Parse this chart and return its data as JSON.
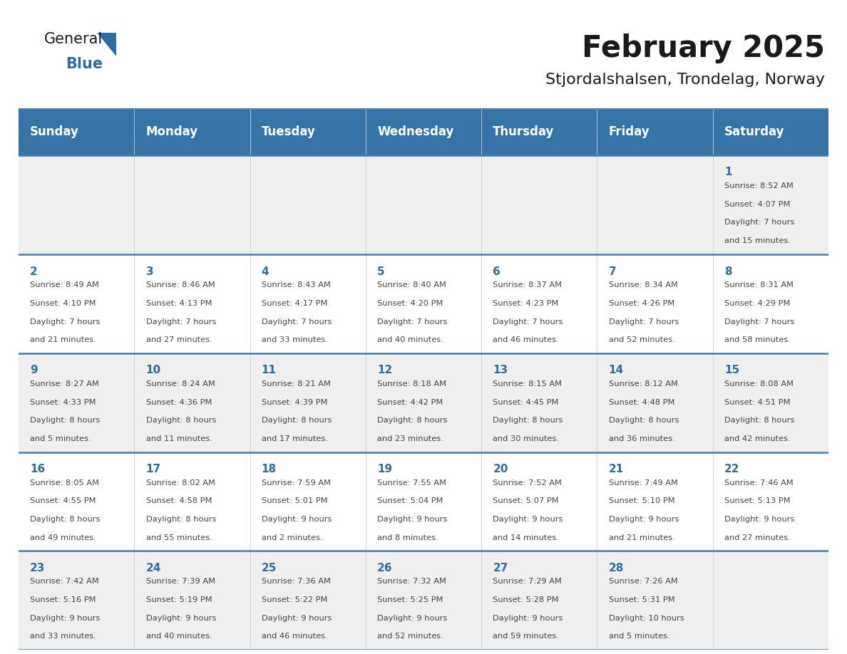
{
  "title": "February 2025",
  "subtitle": "Stjordalshalsen, Trondelag, Norway",
  "days_of_week": [
    "Sunday",
    "Monday",
    "Tuesday",
    "Wednesday",
    "Thursday",
    "Friday",
    "Saturday"
  ],
  "header_bg": "#3674a8",
  "header_text": "#FFFFFF",
  "row_bg_alt": "#EFEFEF",
  "row_bg_norm": "#FFFFFF",
  "day_num_color": "#2E6DA4",
  "info_color": "#444444",
  "border_color": "#4080b0",
  "line_color": "#999999",
  "weeks": [
    [
      {
        "day": null,
        "info": ""
      },
      {
        "day": null,
        "info": ""
      },
      {
        "day": null,
        "info": ""
      },
      {
        "day": null,
        "info": ""
      },
      {
        "day": null,
        "info": ""
      },
      {
        "day": null,
        "info": ""
      },
      {
        "day": 1,
        "info": "Sunrise: 8:52 AM\nSunset: 4:07 PM\nDaylight: 7 hours\nand 15 minutes."
      }
    ],
    [
      {
        "day": 2,
        "info": "Sunrise: 8:49 AM\nSunset: 4:10 PM\nDaylight: 7 hours\nand 21 minutes."
      },
      {
        "day": 3,
        "info": "Sunrise: 8:46 AM\nSunset: 4:13 PM\nDaylight: 7 hours\nand 27 minutes."
      },
      {
        "day": 4,
        "info": "Sunrise: 8:43 AM\nSunset: 4:17 PM\nDaylight: 7 hours\nand 33 minutes."
      },
      {
        "day": 5,
        "info": "Sunrise: 8:40 AM\nSunset: 4:20 PM\nDaylight: 7 hours\nand 40 minutes."
      },
      {
        "day": 6,
        "info": "Sunrise: 8:37 AM\nSunset: 4:23 PM\nDaylight: 7 hours\nand 46 minutes."
      },
      {
        "day": 7,
        "info": "Sunrise: 8:34 AM\nSunset: 4:26 PM\nDaylight: 7 hours\nand 52 minutes."
      },
      {
        "day": 8,
        "info": "Sunrise: 8:31 AM\nSunset: 4:29 PM\nDaylight: 7 hours\nand 58 minutes."
      }
    ],
    [
      {
        "day": 9,
        "info": "Sunrise: 8:27 AM\nSunset: 4:33 PM\nDaylight: 8 hours\nand 5 minutes."
      },
      {
        "day": 10,
        "info": "Sunrise: 8:24 AM\nSunset: 4:36 PM\nDaylight: 8 hours\nand 11 minutes."
      },
      {
        "day": 11,
        "info": "Sunrise: 8:21 AM\nSunset: 4:39 PM\nDaylight: 8 hours\nand 17 minutes."
      },
      {
        "day": 12,
        "info": "Sunrise: 8:18 AM\nSunset: 4:42 PM\nDaylight: 8 hours\nand 23 minutes."
      },
      {
        "day": 13,
        "info": "Sunrise: 8:15 AM\nSunset: 4:45 PM\nDaylight: 8 hours\nand 30 minutes."
      },
      {
        "day": 14,
        "info": "Sunrise: 8:12 AM\nSunset: 4:48 PM\nDaylight: 8 hours\nand 36 minutes."
      },
      {
        "day": 15,
        "info": "Sunrise: 8:08 AM\nSunset: 4:51 PM\nDaylight: 8 hours\nand 42 minutes."
      }
    ],
    [
      {
        "day": 16,
        "info": "Sunrise: 8:05 AM\nSunset: 4:55 PM\nDaylight: 8 hours\nand 49 minutes."
      },
      {
        "day": 17,
        "info": "Sunrise: 8:02 AM\nSunset: 4:58 PM\nDaylight: 8 hours\nand 55 minutes."
      },
      {
        "day": 18,
        "info": "Sunrise: 7:59 AM\nSunset: 5:01 PM\nDaylight: 9 hours\nand 2 minutes."
      },
      {
        "day": 19,
        "info": "Sunrise: 7:55 AM\nSunset: 5:04 PM\nDaylight: 9 hours\nand 8 minutes."
      },
      {
        "day": 20,
        "info": "Sunrise: 7:52 AM\nSunset: 5:07 PM\nDaylight: 9 hours\nand 14 minutes."
      },
      {
        "day": 21,
        "info": "Sunrise: 7:49 AM\nSunset: 5:10 PM\nDaylight: 9 hours\nand 21 minutes."
      },
      {
        "day": 22,
        "info": "Sunrise: 7:46 AM\nSunset: 5:13 PM\nDaylight: 9 hours\nand 27 minutes."
      }
    ],
    [
      {
        "day": 23,
        "info": "Sunrise: 7:42 AM\nSunset: 5:16 PM\nDaylight: 9 hours\nand 33 minutes."
      },
      {
        "day": 24,
        "info": "Sunrise: 7:39 AM\nSunset: 5:19 PM\nDaylight: 9 hours\nand 40 minutes."
      },
      {
        "day": 25,
        "info": "Sunrise: 7:36 AM\nSunset: 5:22 PM\nDaylight: 9 hours\nand 46 minutes."
      },
      {
        "day": 26,
        "info": "Sunrise: 7:32 AM\nSunset: 5:25 PM\nDaylight: 9 hours\nand 52 minutes."
      },
      {
        "day": 27,
        "info": "Sunrise: 7:29 AM\nSunset: 5:28 PM\nDaylight: 9 hours\nand 59 minutes."
      },
      {
        "day": 28,
        "info": "Sunrise: 7:26 AM\nSunset: 5:31 PM\nDaylight: 10 hours\nand 5 minutes."
      },
      {
        "day": null,
        "info": ""
      }
    ]
  ],
  "logo_general_color": "#1a1a1a",
  "logo_blue_color": "#2E6DA4",
  "logo_triangle_color": "#2E6DA4",
  "title_color": "#1a1a1a",
  "subtitle_color": "#1a1a1a"
}
